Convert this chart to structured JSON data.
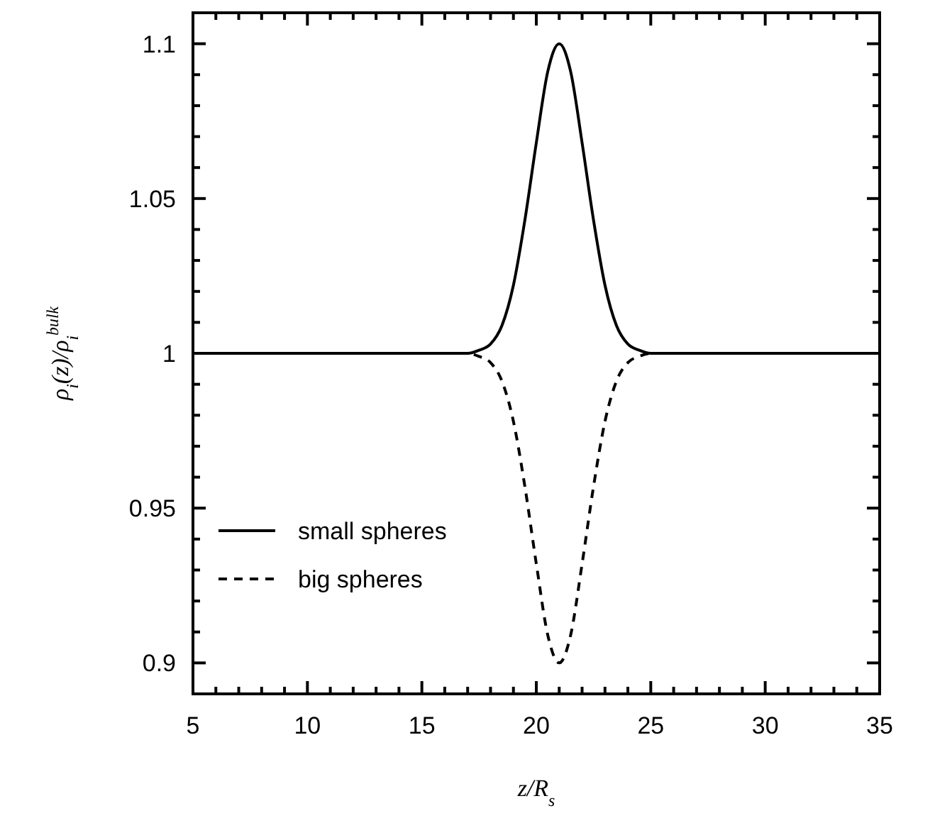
{
  "chart_data": {
    "type": "line",
    "xlabel": "z/R$_{s}$",
    "ylabel": "ρ$_{i}$(z)/ρ$_{i}$$^{bulk}$",
    "x": [
      5,
      17,
      17.5,
      18,
      18.5,
      19,
      19.5,
      20,
      20.5,
      21,
      21.5,
      22,
      22.5,
      23,
      23.5,
      24,
      24.5,
      25,
      35
    ],
    "series": [
      {
        "name": "small spheres",
        "color": "#000000",
        "line_style": "solid",
        "values": [
          1,
          1,
          1.001,
          1.003,
          1.009,
          1.022,
          1.043,
          1.068,
          1.091,
          1.1,
          1.091,
          1.068,
          1.043,
          1.022,
          1.009,
          1.003,
          1.001,
          1,
          1
        ]
      },
      {
        "name": "big spheres",
        "color": "#000000",
        "line_style": "dashed",
        "values": [
          1,
          1,
          0.999,
          0.997,
          0.991,
          0.978,
          0.957,
          0.932,
          0.909,
          0.9,
          0.909,
          0.932,
          0.957,
          0.978,
          0.991,
          0.997,
          0.999,
          1,
          1
        ]
      }
    ],
    "xlim": [
      5,
      35
    ],
    "xticks": [
      5,
      {
        "value": 6,
        "label": null
      },
      {
        "value": 7,
        "label": null
      },
      {
        "value": 8,
        "label": null
      },
      {
        "value": 9,
        "label": null
      },
      10,
      {
        "value": 11,
        "label": null
      },
      {
        "value": 12,
        "label": null
      },
      {
        "value": 13,
        "label": null
      },
      {
        "value": 14,
        "label": null
      },
      15,
      {
        "value": 16,
        "label": null
      },
      {
        "value": 17,
        "label": null
      },
      {
        "value": 18,
        "label": null
      },
      {
        "value": 19,
        "label": null
      },
      20,
      {
        "value": 21,
        "label": null
      },
      {
        "value": 22,
        "label": null
      },
      {
        "value": 23,
        "label": null
      },
      {
        "value": 24,
        "label": null
      },
      25,
      {
        "value": 26,
        "label": null
      },
      {
        "value": 27,
        "label": null
      },
      {
        "value": 28,
        "label": null
      },
      {
        "value": 29,
        "label": null
      },
      30,
      {
        "value": 31,
        "label": null
      },
      {
        "value": 32,
        "label": null
      },
      {
        "value": 33,
        "label": null
      },
      {
        "value": 34,
        "label": null
      },
      35
    ],
    "ylim": [
      0.89,
      1.11
    ],
    "yticks": [
      {
        "value": 0.89,
        "label": null
      },
      0.9,
      {
        "value": 0.91,
        "label": null
      },
      {
        "value": 0.92,
        "label": null
      },
      {
        "value": 0.93,
        "label": null
      },
      {
        "value": 0.94,
        "label": null
      },
      0.95,
      {
        "value": 0.96,
        "label": null
      },
      {
        "value": 0.97,
        "label": null
      },
      {
        "value": 0.98,
        "label": null
      },
      {
        "value": 0.99,
        "label": null
      },
      1,
      {
        "value": 1.01,
        "label": null
      },
      {
        "value": 1.02,
        "label": null
      },
      {
        "value": 1.03,
        "label": null
      },
      {
        "value": 1.04,
        "label": null
      },
      1.05,
      {
        "value": 1.06,
        "label": null
      },
      {
        "value": 1.07,
        "label": null
      },
      {
        "value": 1.08,
        "label": null
      },
      {
        "value": 1.09,
        "label": null
      },
      1.1,
      {
        "value": 1.11,
        "label": null
      }
    ],
    "grid": false,
    "legend": "bottom left"
  }
}
